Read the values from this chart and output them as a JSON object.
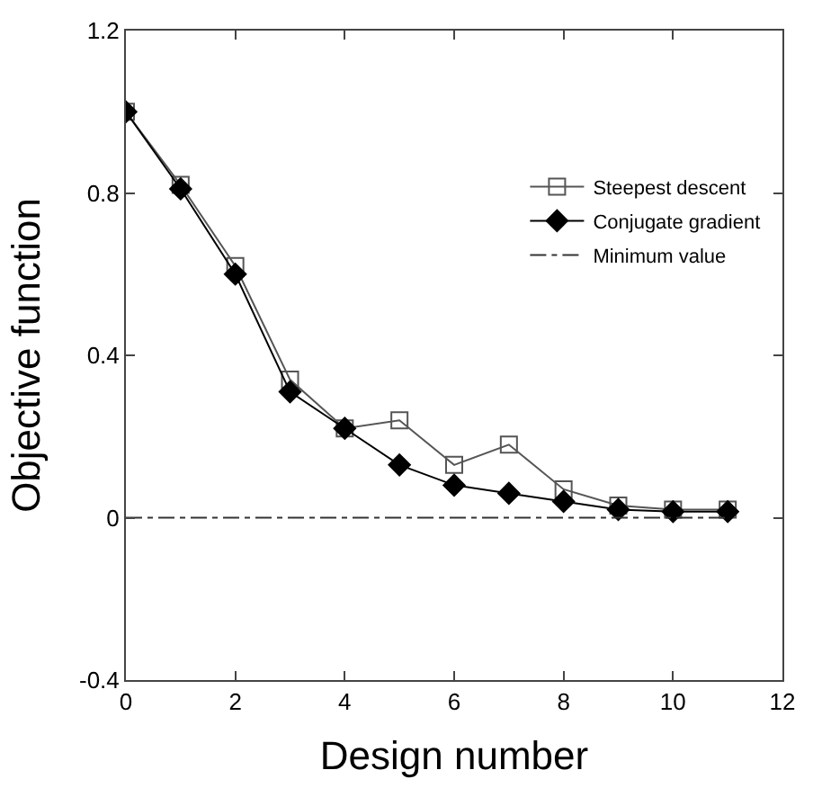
{
  "chart_data": {
    "type": "line",
    "xlabel": "Design number",
    "ylabel": "Objective function",
    "x": [
      0,
      1,
      2,
      3,
      4,
      5,
      6,
      7,
      8,
      9,
      10,
      11
    ],
    "series": [
      {
        "name": "Steepest descent",
        "color": "#555555",
        "marker": "square",
        "line_style": "solid",
        "values": [
          1.0,
          0.82,
          0.62,
          0.34,
          0.22,
          0.24,
          0.13,
          0.18,
          0.07,
          0.03,
          0.02,
          0.02
        ]
      },
      {
        "name": "Conjugate gradient",
        "color": "#000000",
        "marker": "diamond",
        "line_style": "solid",
        "values": [
          1.0,
          0.81,
          0.6,
          0.31,
          0.22,
          0.13,
          0.08,
          0.06,
          0.04,
          0.02,
          0.015,
          0.015
        ]
      },
      {
        "name": "Minimum value",
        "color": "#333333",
        "marker": "none",
        "line_style": "dashed",
        "x": [
          0,
          11
        ],
        "values": [
          0,
          0
        ]
      }
    ],
    "xlim": [
      0,
      12
    ],
    "xticks": [
      0,
      2,
      4,
      6,
      8,
      10,
      12
    ],
    "ylim": [
      -0.4,
      1.2
    ],
    "yticks": [
      -0.4,
      0,
      0.4,
      0.8,
      1.2
    ],
    "legend": "top right"
  }
}
